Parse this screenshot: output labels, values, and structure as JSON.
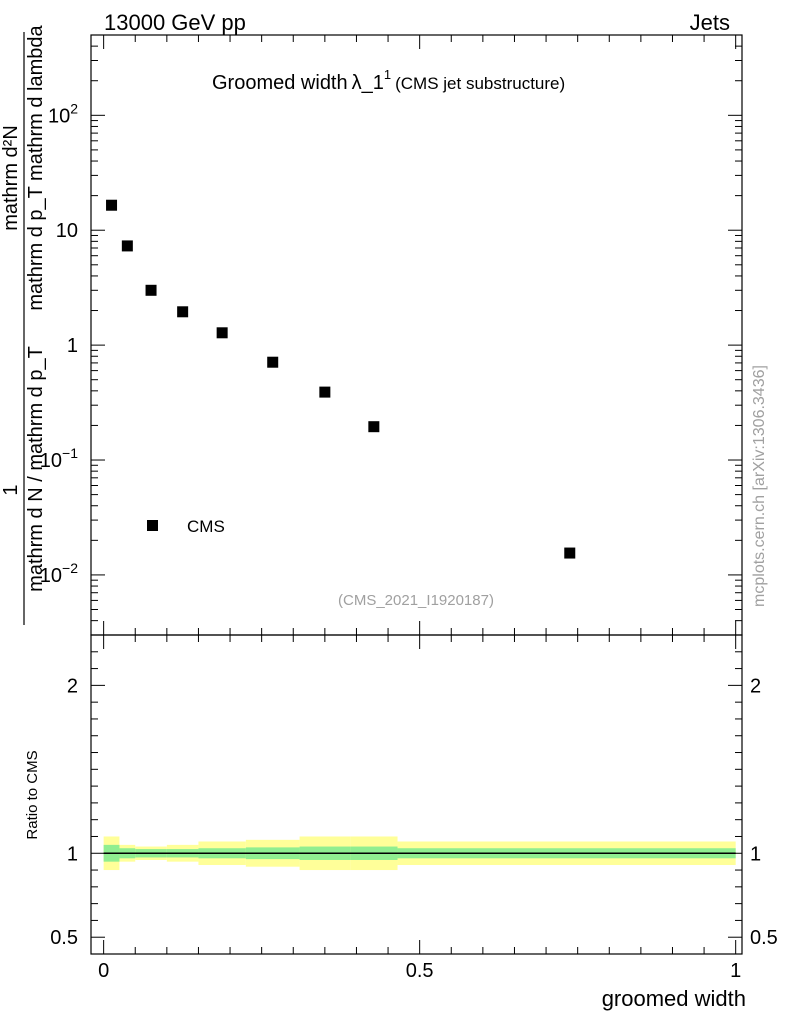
{
  "header": {
    "left": "13000 GeV pp",
    "right": "Jets"
  },
  "side_label": "mcplots.cern.ch [arXiv:1306.3436]",
  "chart_data": [
    {
      "type": "scatter",
      "title": "Groomed width",
      "title_symbol": "λ_1",
      "title_superscript": "1",
      "subtitle": "(CMS jet substructure)",
      "analysis_tag": "(CMS_2021_I1920187)",
      "ylabel_numerator": "mathrm d²N",
      "ylabel_denominator": "mathrm d p_T mathrm d lambda",
      "ylabel_lhs_denominator": "mathrm d N / mathrm d p_T",
      "ylabel_lhs_numerator": "1",
      "yscale": "log",
      "ylim": [
        0.003,
        500
      ],
      "xlim": [
        -0.02,
        1.01
      ],
      "yticks": [
        {
          "value": 0.01,
          "label": "10",
          "exp": "−2"
        },
        {
          "value": 0.1,
          "label": "10",
          "exp": "−1"
        },
        {
          "value": 1,
          "label": "1",
          "exp": ""
        },
        {
          "value": 10,
          "label": "10",
          "exp": ""
        },
        {
          "value": 100,
          "label": "10",
          "exp": "2"
        }
      ],
      "legend": [
        {
          "name": "CMS",
          "marker": "square"
        }
      ],
      "series": [
        {
          "name": "CMS",
          "x": [
            0.0125,
            0.0375,
            0.075,
            0.125,
            0.1875,
            0.2675,
            0.35,
            0.4275,
            0.7375
          ],
          "y": [
            16.5,
            7.3,
            3.0,
            1.95,
            1.28,
            0.71,
            0.39,
            0.195,
            0.0155
          ]
        }
      ]
    },
    {
      "type": "area",
      "ylabel": "Ratio to CMS",
      "xlabel": "groomed width",
      "ylim": [
        0.4,
        2.3
      ],
      "xlim": [
        -0.02,
        1.01
      ],
      "xticks": [
        {
          "value": 0,
          "label": "0"
        },
        {
          "value": 0.5,
          "label": "0.5"
        },
        {
          "value": 1,
          "label": "1"
        }
      ],
      "yticks": [
        {
          "value": 0.5,
          "label": "0.5"
        },
        {
          "value": 1,
          "label": "1"
        },
        {
          "value": 2,
          "label": "2"
        }
      ],
      "reference_line": 1.0,
      "bins": [
        {
          "xlo": 0.0,
          "xhi": 0.025,
          "stat": 0.05,
          "total": 0.1
        },
        {
          "xlo": 0.025,
          "xhi": 0.05,
          "stat": 0.03,
          "total": 0.05
        },
        {
          "xlo": 0.05,
          "xhi": 0.1,
          "stat": 0.025,
          "total": 0.04
        },
        {
          "xlo": 0.1,
          "xhi": 0.15,
          "stat": 0.025,
          "total": 0.05
        },
        {
          "xlo": 0.15,
          "xhi": 0.225,
          "stat": 0.03,
          "total": 0.07
        },
        {
          "xlo": 0.225,
          "xhi": 0.31,
          "stat": 0.035,
          "total": 0.08
        },
        {
          "xlo": 0.31,
          "xhi": 0.39,
          "stat": 0.04,
          "total": 0.1
        },
        {
          "xlo": 0.39,
          "xhi": 0.465,
          "stat": 0.04,
          "total": 0.1
        },
        {
          "xlo": 0.465,
          "xhi": 1.0,
          "stat": 0.03,
          "total": 0.07
        }
      ],
      "band_colors": {
        "stat": "#90ee90",
        "total": "#ffff99"
      }
    }
  ]
}
